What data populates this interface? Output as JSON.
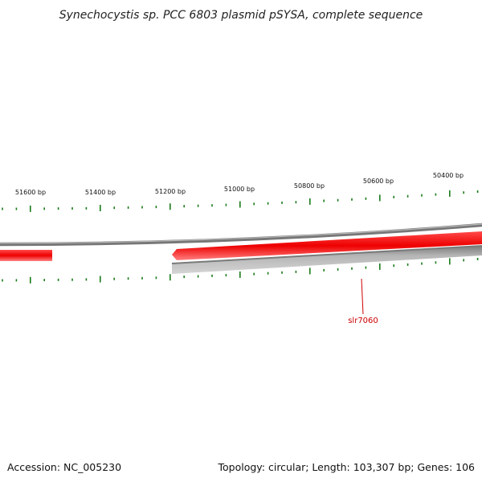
{
  "title": "Synechocystis sp. PCC 6803 plasmid pSYSA, complete sequence",
  "footer": {
    "accession": "Accession: NC_005230",
    "summary": "Topology: circular; Length: 103,307 bp; Genes: 106"
  },
  "ticks": {
    "labels": [
      "51600 bp",
      "51400 bp",
      "51200 bp",
      "51000 bp",
      "50800 bp",
      "50600 bp",
      "50400 bp"
    ],
    "color": "#1a7a1a"
  },
  "genes": [
    {
      "label": "slr7060",
      "color": "#ff0000"
    }
  ],
  "colors": {
    "backbone": "#888888",
    "gene_forward": "#ff0000",
    "gene_reverse": "#bbbbbb",
    "label": "#cc0000"
  }
}
